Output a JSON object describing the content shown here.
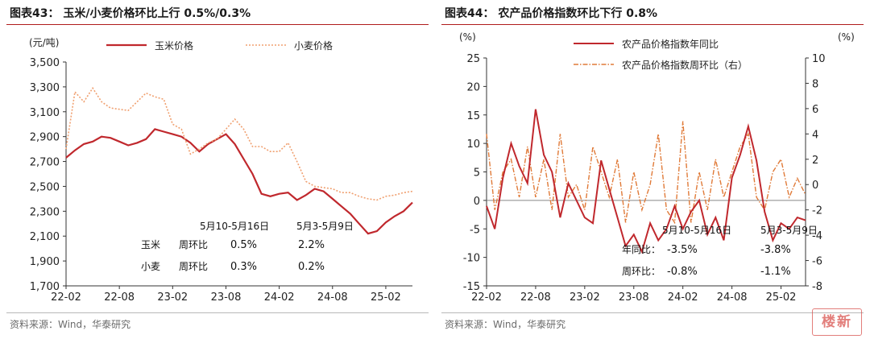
{
  "left": {
    "title": "图表43：  玉米/小麦价格环比上行 0.5%/0.3%",
    "source": "资料来源：Wind，华泰研究",
    "table": {
      "col1_header": "5月10-5月16日",
      "col2_header": "5月3-5月9日",
      "rows": [
        {
          "name": "玉米",
          "metric": "周环比",
          "v1": "0.5%",
          "v2": "2.2%"
        },
        {
          "name": "小麦",
          "metric": "周环比",
          "v1": "0.3%",
          "v2": "0.2%"
        }
      ]
    }
  },
  "right": {
    "title": "图表44：  农产品价格指数环比下行 0.8%",
    "source": "资料来源：Wind，华泰研究",
    "watermark": "楼新",
    "table": {
      "col1_header": "5月10-5月16日",
      "col2_header": "5月3-5月9日",
      "rows": [
        {
          "metric": "年同比：",
          "v1": "-3.5%",
          "v2": "-3.8%"
        },
        {
          "metric": "周环比：",
          "v1": "-0.8%",
          "v2": "-1.1%"
        }
      ]
    }
  },
  "chart_data": [
    {
      "type": "line",
      "ylabel": "(元/吨)",
      "ylim": [
        1700,
        3500
      ],
      "yticks": [
        "1,700",
        "1,900",
        "2,100",
        "2,300",
        "2,500",
        "2,700",
        "2,900",
        "3,100",
        "3,300",
        "3,500"
      ],
      "xticks": [
        "22-02",
        "22-08",
        "23-02",
        "23-08",
        "24-02",
        "24-08",
        "25-02"
      ],
      "xlim": [
        "2022-02",
        "2025-05"
      ],
      "legend": "top",
      "colors": {
        "corn": "#c0282d",
        "wheat": "#f0a070"
      },
      "series": [
        {
          "name": "玉米价格",
          "style": "solid",
          "x": [
            "2022-02",
            "2022-03",
            "2022-04",
            "2022-05",
            "2022-06",
            "2022-07",
            "2022-08",
            "2022-09",
            "2022-10",
            "2022-11",
            "2022-12",
            "2023-01",
            "2023-02",
            "2023-03",
            "2023-04",
            "2023-05",
            "2023-06",
            "2023-07",
            "2023-08",
            "2023-09",
            "2023-10",
            "2023-11",
            "2023-12",
            "2024-01",
            "2024-02",
            "2024-03",
            "2024-04",
            "2024-05",
            "2024-06",
            "2024-07",
            "2024-08",
            "2024-09",
            "2024-10",
            "2024-11",
            "2024-12",
            "2025-01",
            "2025-02",
            "2025-03",
            "2025-04",
            "2025-05"
          ],
          "values": [
            2730,
            2790,
            2840,
            2860,
            2900,
            2890,
            2860,
            2830,
            2850,
            2880,
            2960,
            2940,
            2920,
            2900,
            2850,
            2780,
            2840,
            2880,
            2920,
            2840,
            2720,
            2600,
            2440,
            2420,
            2440,
            2450,
            2390,
            2430,
            2480,
            2460,
            2400,
            2340,
            2280,
            2200,
            2120,
            2140,
            2210,
            2260,
            2300,
            2370
          ]
        },
        {
          "name": "小麦价格",
          "style": "dotted",
          "x": [
            "2022-02",
            "2022-03",
            "2022-04",
            "2022-05",
            "2022-06",
            "2022-07",
            "2022-08",
            "2022-09",
            "2022-10",
            "2022-11",
            "2022-12",
            "2023-01",
            "2023-02",
            "2023-03",
            "2023-04",
            "2023-05",
            "2023-06",
            "2023-07",
            "2023-08",
            "2023-09",
            "2023-10",
            "2023-11",
            "2023-12",
            "2024-01",
            "2024-02",
            "2024-03",
            "2024-04",
            "2024-05",
            "2024-06",
            "2024-07",
            "2024-08",
            "2024-09",
            "2024-10",
            "2024-11",
            "2024-12",
            "2025-01",
            "2025-02",
            "2025-03",
            "2025-04",
            "2025-05"
          ],
          "values": [
            2800,
            3260,
            3180,
            3290,
            3180,
            3130,
            3120,
            3110,
            3180,
            3250,
            3220,
            3200,
            3000,
            2960,
            2760,
            2800,
            2850,
            2880,
            2960,
            3040,
            2960,
            2820,
            2820,
            2780,
            2780,
            2850,
            2700,
            2540,
            2500,
            2490,
            2480,
            2450,
            2450,
            2420,
            2400,
            2390,
            2420,
            2430,
            2450,
            2460
          ]
        }
      ]
    },
    {
      "type": "line",
      "ylabel_left": "(%)",
      "ylabel_right": "(%)",
      "ylim_left": [
        -15,
        25
      ],
      "ylim_right": [
        -8,
        10
      ],
      "yticks_left": [
        "-15",
        "-10",
        "-5",
        "0",
        "5",
        "10",
        "15",
        "20",
        "25"
      ],
      "yticks_right": [
        "-8",
        "-6",
        "-4",
        "-2",
        "0",
        "2",
        "4",
        "6",
        "8",
        "10"
      ],
      "xticks": [
        "22-02",
        "22-08",
        "23-02",
        "23-08",
        "24-02",
        "24-08",
        "25-02"
      ],
      "xlim": [
        "2022-02",
        "2025-05"
      ],
      "legend": "top",
      "colors": {
        "yoy": "#c0282d",
        "wow": "#e07a38"
      },
      "series": [
        {
          "name": "农产品价格指数年同比",
          "axis": "left",
          "style": "solid",
          "x": [
            "2022-02",
            "2022-03",
            "2022-04",
            "2022-05",
            "2022-06",
            "2022-07",
            "2022-08",
            "2022-09",
            "2022-10",
            "2022-11",
            "2022-12",
            "2023-01",
            "2023-02",
            "2023-03",
            "2023-04",
            "2023-05",
            "2023-06",
            "2023-07",
            "2023-08",
            "2023-09",
            "2023-10",
            "2023-11",
            "2023-12",
            "2024-01",
            "2024-02",
            "2024-03",
            "2024-04",
            "2024-05",
            "2024-06",
            "2024-07",
            "2024-08",
            "2024-09",
            "2024-10",
            "2024-11",
            "2024-12",
            "2025-01",
            "2025-02",
            "2025-03",
            "2025-04",
            "2025-05"
          ],
          "values": [
            -1,
            -5,
            4,
            10,
            6,
            3,
            16,
            8,
            5,
            -3,
            3,
            0,
            -3,
            -4,
            7,
            2,
            -3,
            -8,
            -6,
            -9,
            -4,
            -7,
            -5,
            -1,
            -5,
            -2,
            0,
            -6,
            -3,
            -7,
            4,
            8,
            13,
            7,
            -2,
            -7,
            -4,
            -5,
            -3,
            -3.5
          ]
        },
        {
          "name": "农产品价格指数周环比（右）",
          "axis": "right",
          "style": "dashdot",
          "x": [
            "2022-02",
            "2022-03",
            "2022-04",
            "2022-05",
            "2022-06",
            "2022-07",
            "2022-08",
            "2022-09",
            "2022-10",
            "2022-11",
            "2022-12",
            "2023-01",
            "2023-02",
            "2023-03",
            "2023-04",
            "2023-05",
            "2023-06",
            "2023-07",
            "2023-08",
            "2023-09",
            "2023-10",
            "2023-11",
            "2023-12",
            "2024-01",
            "2024-02",
            "2024-03",
            "2024-04",
            "2024-05",
            "2024-06",
            "2024-07",
            "2024-08",
            "2024-09",
            "2024-10",
            "2024-11",
            "2024-12",
            "2025-01",
            "2025-02",
            "2025-03",
            "2025-04",
            "2025-05"
          ],
          "values": [
            4,
            -2,
            1,
            2,
            -1,
            3,
            -1,
            2,
            -2,
            4,
            -1,
            0,
            -2,
            3,
            1,
            -1,
            2,
            -3,
            1,
            -2,
            0,
            4,
            -2,
            -3,
            5,
            -3,
            1,
            -2,
            2,
            -1,
            1,
            3,
            4,
            -1,
            -2,
            1,
            2,
            -1,
            0.5,
            -0.8
          ]
        }
      ]
    }
  ]
}
